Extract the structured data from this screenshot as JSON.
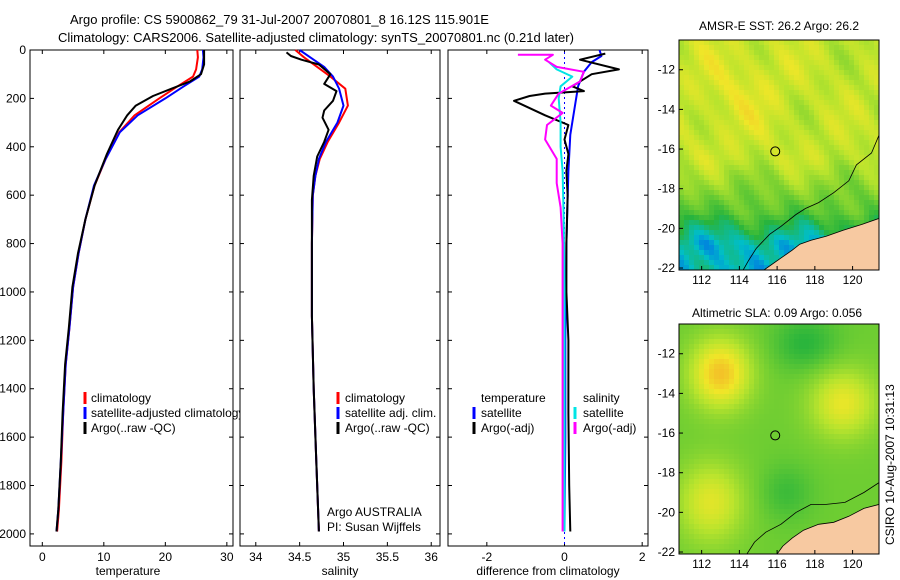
{
  "header": {
    "line1": "Argo profile: CS 5900862_79 31-Jul-2007 20070801_8 16.12S 115.901E",
    "line2": "Climatology: CARS2006. Satellite-adjusted climatology: synTS_20070801.nc (0.21d later)"
  },
  "side_label": "CSIRO 10-Aug-2007 10:31:13",
  "colors": {
    "red": "#ff0000",
    "blue": "#0000ff",
    "black": "#000000",
    "cyan": "#00e5e5",
    "magenta": "#ff00ff",
    "land": "#f7c9a1"
  },
  "chart_data": [
    {
      "id": "temperature",
      "type": "line",
      "xlabel": "temperature",
      "ylabel": "",
      "xlim": [
        -2,
        31
      ],
      "ylim": [
        2050,
        0
      ],
      "xticks": [
        "0",
        "10",
        "20",
        "30"
      ],
      "xtick_values": [
        0,
        10,
        20,
        30
      ],
      "yticks": [
        "0",
        "200",
        "400",
        "600",
        "800",
        "1000",
        "1200",
        "1400",
        "1600",
        "1800",
        "2000"
      ],
      "ytick_values": [
        0,
        200,
        400,
        600,
        800,
        1000,
        1200,
        1400,
        1600,
        1800,
        2000
      ],
      "legend": [
        "climatology",
        "satellite-adjusted climatology",
        "Argo(..raw -QC)"
      ],
      "series": [
        {
          "name": "climatology",
          "color": "#ff0000",
          "points": [
            [
              25.2,
              0
            ],
            [
              25.3,
              30
            ],
            [
              25.0,
              80
            ],
            [
              24.5,
              110
            ],
            [
              22,
              150
            ],
            [
              19,
              200
            ],
            [
              15,
              270
            ],
            [
              12.5,
              340
            ],
            [
              10.3,
              450
            ],
            [
              8.5,
              560
            ],
            [
              7,
              700
            ],
            [
              5.9,
              840
            ],
            [
              5,
              980
            ],
            [
              4.4,
              1150
            ],
            [
              3.8,
              1300
            ],
            [
              3.4,
              1500
            ],
            [
              3.1,
              1700
            ],
            [
              2.7,
              1900
            ],
            [
              2.4,
              1990
            ]
          ]
        },
        {
          "name": "satellite-adjusted climatology",
          "color": "#0000ff",
          "points": [
            [
              26.1,
              0
            ],
            [
              26.2,
              30
            ],
            [
              26.0,
              80
            ],
            [
              25.5,
              110
            ],
            [
              23,
              150
            ],
            [
              20,
              200
            ],
            [
              15.5,
              270
            ],
            [
              12.6,
              340
            ],
            [
              10.3,
              450
            ],
            [
              8.4,
              560
            ],
            [
              7,
              700
            ],
            [
              5.9,
              840
            ],
            [
              5,
              980
            ],
            [
              4.4,
              1150
            ],
            [
              3.8,
              1300
            ],
            [
              3.4,
              1500
            ],
            [
              3.0,
              1700
            ],
            [
              2.6,
              1900
            ],
            [
              2.3,
              1990
            ]
          ]
        },
        {
          "name": "Argo(..raw -QC)",
          "color": "#000000",
          "points": [
            [
              26.3,
              0
            ],
            [
              26.3,
              60
            ],
            [
              25.8,
              100
            ],
            [
              24,
              130
            ],
            [
              21,
              160
            ],
            [
              18,
              190
            ],
            [
              15.2,
              230
            ],
            [
              13.8,
              270
            ],
            [
              12.3,
              330
            ],
            [
              10.5,
              430
            ],
            [
              8.5,
              560
            ],
            [
              7,
              700
            ],
            [
              5.8,
              840
            ],
            [
              4.9,
              980
            ],
            [
              4.3,
              1150
            ],
            [
              3.7,
              1300
            ],
            [
              3.3,
              1500
            ],
            [
              3.0,
              1700
            ],
            [
              2.6,
              1900
            ],
            [
              2.3,
              1990
            ]
          ]
        }
      ]
    },
    {
      "id": "salinity",
      "type": "line",
      "xlabel": "salinity",
      "ylabel": "",
      "xlim": [
        33.82,
        36.1
      ],
      "ylim": [
        2050,
        0
      ],
      "xticks": [
        "34",
        "34.5",
        "35",
        "35.5",
        "36"
      ],
      "xtick_values": [
        34,
        34.5,
        35,
        35.5,
        36
      ],
      "legend": [
        "climatology",
        "satellite adj. clim.",
        "Argo(..raw -QC)"
      ],
      "annotation_lines": [
        "Argo AUSTRALIA",
        "PI: Susan Wijffels"
      ],
      "series": [
        {
          "name": "climatology",
          "color": "#ff0000",
          "points": [
            [
              34.45,
              0
            ],
            [
              34.55,
              30
            ],
            [
              34.7,
              70
            ],
            [
              34.85,
              110
            ],
            [
              35.02,
              160
            ],
            [
              35.05,
              230
            ],
            [
              34.95,
              300
            ],
            [
              34.82,
              380
            ],
            [
              34.73,
              450
            ],
            [
              34.68,
              520
            ],
            [
              34.65,
              600
            ],
            [
              34.64,
              800
            ],
            [
              34.64,
              1100
            ],
            [
              34.66,
              1400
            ],
            [
              34.69,
              1700
            ],
            [
              34.72,
              1990
            ]
          ]
        },
        {
          "name": "satellite adj. clim.",
          "color": "#0000ff",
          "points": [
            [
              34.5,
              0
            ],
            [
              34.62,
              30
            ],
            [
              34.78,
              70
            ],
            [
              34.88,
              110
            ],
            [
              34.95,
              160
            ],
            [
              35.0,
              230
            ],
            [
              34.93,
              300
            ],
            [
              34.8,
              380
            ],
            [
              34.72,
              450
            ],
            [
              34.68,
              520
            ],
            [
              34.65,
              600
            ],
            [
              34.64,
              800
            ],
            [
              34.64,
              1100
            ],
            [
              34.66,
              1400
            ],
            [
              34.69,
              1700
            ],
            [
              34.72,
              1990
            ]
          ]
        },
        {
          "name": "Argo(..raw -QC)",
          "color": "#000000",
          "points": [
            [
              34.35,
              10
            ],
            [
              34.4,
              25
            ],
            [
              34.52,
              40
            ],
            [
              34.72,
              60
            ],
            [
              34.85,
              100
            ],
            [
              34.78,
              140
            ],
            [
              34.92,
              170
            ],
            [
              34.88,
              210
            ],
            [
              34.78,
              250
            ],
            [
              34.76,
              280
            ],
            [
              34.83,
              330
            ],
            [
              34.78,
              380
            ],
            [
              34.7,
              440
            ],
            [
              34.66,
              520
            ],
            [
              34.64,
              620
            ],
            [
              34.64,
              800
            ],
            [
              34.64,
              1100
            ],
            [
              34.66,
              1400
            ],
            [
              34.69,
              1700
            ],
            [
              34.72,
              1990
            ]
          ]
        }
      ]
    },
    {
      "id": "difference",
      "type": "line",
      "xlabel": "difference from climatology",
      "ylabel": "",
      "xlim": [
        -3,
        2.15
      ],
      "ylim": [
        2050,
        0
      ],
      "xticks": [
        "-2",
        "0",
        "2"
      ],
      "xtick_values": [
        -2,
        0,
        2
      ],
      "legend_left_title": "temperature",
      "legend_right_title": "salinity",
      "legend": [
        "satellite",
        "Argo(-adj)",
        "satellite",
        "Argo(-adj)"
      ],
      "series": [
        {
          "name": "temperature satellite",
          "color": "#0000ff",
          "points": [
            [
              0.9,
              0
            ],
            [
              0.95,
              25
            ],
            [
              0.7,
              50
            ],
            [
              0.5,
              90
            ],
            [
              0.35,
              150
            ],
            [
              0.25,
              250
            ],
            [
              0.15,
              350
            ],
            [
              0.1,
              500
            ],
            [
              0.05,
              800
            ],
            [
              0.02,
              1200
            ],
            [
              0.02,
              1600
            ],
            [
              0.0,
              1990
            ]
          ]
        },
        {
          "name": "temperature Argo(-adj)",
          "color": "#000000",
          "points": [
            [
              1.05,
              15
            ],
            [
              0.4,
              40
            ],
            [
              1.4,
              80
            ],
            [
              0.7,
              100
            ],
            [
              0.2,
              150
            ],
            [
              0.5,
              170
            ],
            [
              -0.5,
              180
            ],
            [
              -0.9,
              190
            ],
            [
              -1.3,
              210
            ],
            [
              -0.5,
              270
            ],
            [
              0.1,
              310
            ],
            [
              0.0,
              370
            ],
            [
              0.1,
              430
            ],
            [
              0.05,
              500
            ],
            [
              0.08,
              600
            ],
            [
              0.05,
              800
            ],
            [
              0.05,
              1000
            ],
            [
              0.1,
              1200
            ],
            [
              0.1,
              1500
            ],
            [
              0.12,
              1800
            ],
            [
              0.15,
              1990
            ]
          ]
        },
        {
          "name": "salinity satellite",
          "color": "#00e5e5",
          "points": [
            [
              -0.4,
              50
            ],
            [
              -0.2,
              80
            ],
            [
              0.2,
              110
            ],
            [
              -0.1,
              150
            ],
            [
              -0.15,
              200
            ],
            [
              -0.1,
              300
            ],
            [
              -0.1,
              400
            ],
            [
              -0.05,
              500
            ],
            [
              -0.02,
              700
            ],
            [
              0.0,
              1000
            ],
            [
              0.0,
              1400
            ],
            [
              0.0,
              1990
            ]
          ]
        },
        {
          "name": "salinity Argo(-adj)",
          "color": "#ff00ff",
          "points": [
            [
              -1.2,
              20
            ],
            [
              -0.3,
              20
            ],
            [
              -0.5,
              40
            ],
            [
              -0.2,
              70
            ],
            [
              0.5,
              90
            ],
            [
              0.4,
              130
            ],
            [
              -0.15,
              180
            ],
            [
              -0.35,
              230
            ],
            [
              -0.05,
              260
            ],
            [
              -0.45,
              310
            ],
            [
              -0.5,
              370
            ],
            [
              -0.2,
              450
            ],
            [
              -0.2,
              550
            ],
            [
              -0.1,
              650
            ],
            [
              -0.05,
              800
            ],
            [
              -0.05,
              1200
            ],
            [
              -0.05,
              1600
            ],
            [
              -0.05,
              1990
            ]
          ]
        }
      ]
    },
    {
      "id": "sst_map",
      "type": "heatmap",
      "title": "AMSR-E SST: 26.2 Argo: 26.2",
      "value_field": "SST",
      "xlim": [
        110.8,
        121.4
      ],
      "ylim": [
        -22.1,
        -10.5
      ],
      "xticks": [
        "112",
        "114",
        "116",
        "118",
        "120"
      ],
      "xtick_values": [
        112,
        114,
        116,
        118,
        120
      ],
      "yticks": [
        "-12",
        "-14",
        "-16",
        "-18",
        "-20",
        "-22"
      ],
      "ytick_values": [
        -12,
        -14,
        -16,
        -18,
        -20,
        -22
      ],
      "marker": [
        115.9,
        -16.12
      ],
      "coastline": [
        [
          121.4,
          -15.3
        ],
        [
          121.0,
          -16.2
        ],
        [
          120.2,
          -16.8
        ],
        [
          119.8,
          -17.6
        ],
        [
          119.0,
          -18.2
        ],
        [
          118.2,
          -18.7
        ],
        [
          117.5,
          -19.0
        ],
        [
          117.0,
          -19.3
        ],
        [
          116.2,
          -19.9
        ],
        [
          115.6,
          -20.3
        ],
        [
          114.9,
          -21.0
        ],
        [
          114.5,
          -21.6
        ],
        [
          114.2,
          -22.1
        ]
      ],
      "land": [
        [
          121.4,
          -19.5
        ],
        [
          120.5,
          -19.8
        ],
        [
          119.5,
          -20.1
        ],
        [
          118.6,
          -20.4
        ],
        [
          117.8,
          -20.6
        ],
        [
          117.2,
          -20.8
        ],
        [
          116.8,
          -21.1
        ],
        [
          116.2,
          -21.5
        ],
        [
          115.6,
          -21.9
        ],
        [
          115.3,
          -22.1
        ],
        [
          121.4,
          -22.1
        ]
      ]
    },
    {
      "id": "sla_map",
      "type": "heatmap",
      "title": "Altimetric SLA: 0.09 Argo: 0.056",
      "value_field": "SLA",
      "xlim": [
        110.8,
        121.4
      ],
      "ylim": [
        -22.1,
        -10.5
      ],
      "xticks": [
        "112",
        "114",
        "116",
        "118",
        "120"
      ],
      "xtick_values": [
        112,
        114,
        116,
        118,
        120
      ],
      "yticks": [
        "-12",
        "-14",
        "-16",
        "-18",
        "-20",
        "-22"
      ],
      "ytick_values": [
        -12,
        -14,
        -16,
        -18,
        -20,
        -22
      ],
      "marker": [
        115.9,
        -16.12
      ],
      "coastline": [
        [
          121.4,
          -18.5
        ],
        [
          120.6,
          -19.0
        ],
        [
          119.6,
          -19.5
        ],
        [
          118.6,
          -19.6
        ],
        [
          117.8,
          -19.6
        ],
        [
          117.0,
          -20.0
        ],
        [
          116.2,
          -20.6
        ],
        [
          115.4,
          -21.0
        ],
        [
          114.8,
          -21.5
        ],
        [
          114.4,
          -22.1
        ]
      ],
      "land": [
        [
          121.4,
          -19.6
        ],
        [
          120.6,
          -19.8
        ],
        [
          119.8,
          -20.2
        ],
        [
          119.0,
          -20.5
        ],
        [
          118.2,
          -20.6
        ],
        [
          117.4,
          -20.9
        ],
        [
          116.8,
          -21.3
        ],
        [
          116.3,
          -21.7
        ],
        [
          116.0,
          -22.1
        ],
        [
          121.4,
          -22.1
        ]
      ]
    }
  ]
}
